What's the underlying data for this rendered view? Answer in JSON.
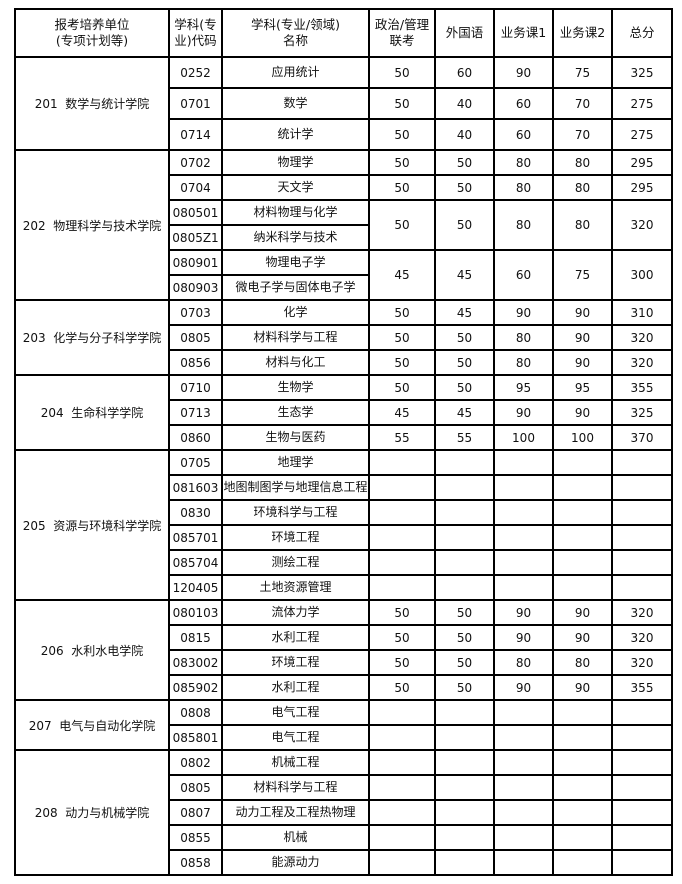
{
  "headers": [
    "报考培养单位\n(专项计划等)",
    "学科(专\n业)代码",
    "学科(专业/领域)\n名称",
    "政治/管理\n联考",
    "外国语",
    "业务课1",
    "业务课2",
    "总分"
  ],
  "colleges": [
    {
      "name": "201  数学与统计学院",
      "tall": true,
      "rows": [
        {
          "code": "0252",
          "name": "应用统计",
          "scores": [
            "50",
            "60",
            "90",
            "75",
            "325"
          ]
        },
        {
          "code": "0701",
          "name": "数学",
          "scores": [
            "50",
            "40",
            "60",
            "70",
            "275"
          ]
        },
        {
          "code": "0714",
          "name": "统计学",
          "scores": [
            "50",
            "40",
            "60",
            "70",
            "275"
          ]
        }
      ]
    },
    {
      "name": "202  物理科学与技术学院",
      "rows": [
        {
          "code": "0702",
          "name": "物理学",
          "scores": [
            "50",
            "50",
            "80",
            "80",
            "295"
          ]
        },
        {
          "code": "0704",
          "name": "天文学",
          "scores": [
            "50",
            "50",
            "80",
            "80",
            "295"
          ]
        },
        {
          "code": "080501",
          "name": "材料物理与化学",
          "scores": [
            "50",
            "50",
            "80",
            "80",
            "320"
          ],
          "score_rowspan": 2
        },
        {
          "code": "0805Z1",
          "name": "纳米科学与技术",
          "scores_merged": true
        },
        {
          "code": "080901",
          "name": "物理电子学",
          "scores": [
            "45",
            "45",
            "60",
            "75",
            "300"
          ],
          "score_rowspan": 2
        },
        {
          "code": "080903",
          "name": "微电子学与固体电子学",
          "scores_merged": true
        }
      ]
    },
    {
      "name": "203  化学与分子科学学院",
      "rows": [
        {
          "code": "0703",
          "name": "化学",
          "scores": [
            "50",
            "45",
            "90",
            "90",
            "310"
          ]
        },
        {
          "code": "0805",
          "name": "材料科学与工程",
          "scores": [
            "50",
            "50",
            "80",
            "90",
            "320"
          ]
        },
        {
          "code": "0856",
          "name": "材料与化工",
          "scores": [
            "50",
            "50",
            "80",
            "90",
            "320"
          ]
        }
      ]
    },
    {
      "name": "204  生命科学学院",
      "rows": [
        {
          "code": "0710",
          "name": "生物学",
          "scores": [
            "50",
            "50",
            "95",
            "95",
            "355"
          ]
        },
        {
          "code": "0713",
          "name": "生态学",
          "scores": [
            "45",
            "45",
            "90",
            "90",
            "325"
          ]
        },
        {
          "code": "0860",
          "name": "生物与医药",
          "scores": [
            "55",
            "55",
            "100",
            "100",
            "370"
          ]
        }
      ]
    },
    {
      "name": "205  资源与环境科学学院",
      "rows": [
        {
          "code": "0705",
          "name": "地理学",
          "scores": [
            "",
            "",
            "",
            "",
            ""
          ]
        },
        {
          "code": "081603",
          "name": "地图制图学与地理信息工程",
          "scores": [
            "",
            "",
            "",
            "",
            ""
          ]
        },
        {
          "code": "0830",
          "name": "环境科学与工程",
          "scores": [
            "",
            "",
            "",
            "",
            ""
          ]
        },
        {
          "code": "085701",
          "name": "环境工程",
          "scores": [
            "",
            "",
            "",
            "",
            ""
          ]
        },
        {
          "code": "085704",
          "name": "测绘工程",
          "scores": [
            "",
            "",
            "",
            "",
            ""
          ]
        },
        {
          "code": "120405",
          "name": "土地资源管理",
          "scores": [
            "",
            "",
            "",
            "",
            ""
          ]
        }
      ]
    },
    {
      "name": "206  水利水电学院",
      "rows": [
        {
          "code": "080103",
          "name": "流体力学",
          "scores": [
            "50",
            "50",
            "90",
            "90",
            "320"
          ]
        },
        {
          "code": "0815",
          "name": "水利工程",
          "scores": [
            "50",
            "50",
            "90",
            "90",
            "320"
          ]
        },
        {
          "code": "083002",
          "name": "环境工程",
          "scores": [
            "50",
            "50",
            "80",
            "80",
            "320"
          ]
        },
        {
          "code": "085902",
          "name": "水利工程",
          "scores": [
            "50",
            "50",
            "90",
            "90",
            "355"
          ]
        }
      ]
    },
    {
      "name": "207  电气与自动化学院",
      "rows": [
        {
          "code": "0808",
          "name": "电气工程",
          "scores": [
            "",
            "",
            "",
            "",
            ""
          ]
        },
        {
          "code": "085801",
          "name": "电气工程",
          "scores": [
            "",
            "",
            "",
            "",
            ""
          ]
        }
      ]
    },
    {
      "name": "208  动力与机械学院",
      "rows": [
        {
          "code": "0802",
          "name": "机械工程",
          "scores": [
            "",
            "",
            "",
            "",
            ""
          ]
        },
        {
          "code": "0805",
          "name": "材料科学与工程",
          "scores": [
            "",
            "",
            "",
            "",
            ""
          ]
        },
        {
          "code": "0807",
          "name": "动力工程及工程热物理",
          "scores": [
            "",
            "",
            "",
            "",
            ""
          ]
        },
        {
          "code": "0855",
          "name": "机械",
          "scores": [
            "",
            "",
            "",
            "",
            ""
          ]
        },
        {
          "code": "0858",
          "name": "能源动力",
          "scores": [
            "",
            "",
            "",
            "",
            ""
          ]
        }
      ]
    }
  ]
}
